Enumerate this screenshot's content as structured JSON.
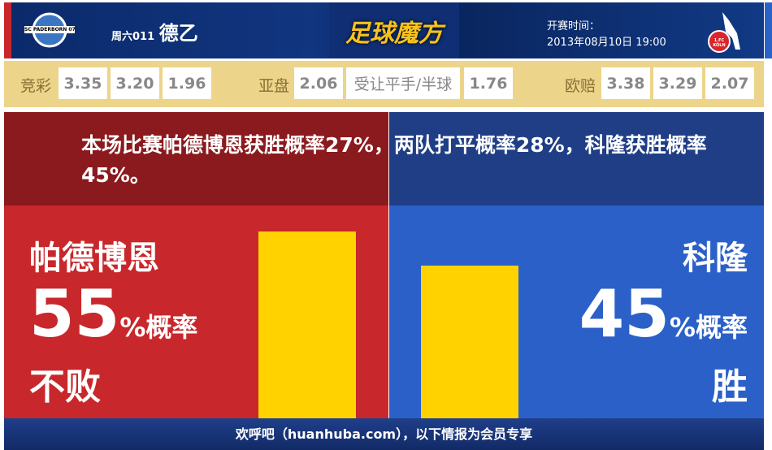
{
  "header": {
    "home_logo_text": "SC PADERBORN 07",
    "week": "周六011",
    "league": "德乙",
    "brand": "足球魔方",
    "time_label": "开赛时间：",
    "time_value": "2013年08月10日 19:00",
    "away_logo_text": "1.FC KÖLN"
  },
  "odds": {
    "jingcai_label": "竞彩",
    "jingcai": [
      "3.35",
      "3.20",
      "1.96"
    ],
    "yapan_label": "亚盘",
    "yapan_home": "2.06",
    "yapan_line": "受让平手/半球",
    "yapan_away": "1.76",
    "oupei_label": "欧赔",
    "oupei": [
      "3.38",
      "3.29",
      "2.07"
    ]
  },
  "summary": "本场比赛帕德博恩获胜概率27%，两队打平概率28%，科隆获胜概率45%。",
  "home": {
    "name": "帕德博恩",
    "percent": "55",
    "unit": "%概率",
    "outcome": "不败",
    "value": 55
  },
  "away": {
    "name": "科隆",
    "percent": "45",
    "unit": "%概率",
    "outcome": "胜",
    "value": 45
  },
  "colors": {
    "home_dark": "#8a1a1e",
    "home": "#c8272b",
    "away_dark": "#1f3e86",
    "away": "#2b60c8",
    "bar": "#ffd200"
  },
  "footer": "欢呼吧（huanhuba.com），以下情报为会员专享"
}
